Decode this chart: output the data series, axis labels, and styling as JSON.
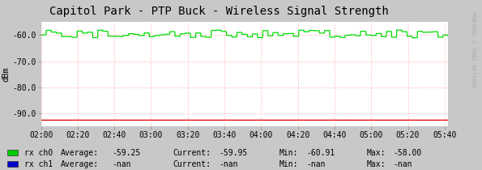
{
  "title": "Capitol Park - PTP Buck - Wireless Signal Strength",
  "ylabel": "dBm",
  "bg_color": "#c8c8c8",
  "plot_bg_color": "#ffffff",
  "grid_color": "#ffaaaa",
  "ylim": [
    -95,
    -55
  ],
  "yticks": [
    -90.0,
    -80.0,
    -70.0,
    -60.0
  ],
  "x_start": 7200,
  "x_end": 20520,
  "xtick_labels": [
    "02:00",
    "02:20",
    "02:40",
    "03:00",
    "03:20",
    "03:40",
    "04:00",
    "04:20",
    "04:40",
    "05:00",
    "05:20",
    "05:40"
  ],
  "xtick_values": [
    7200,
    8400,
    9600,
    10800,
    12000,
    13200,
    14400,
    15600,
    16800,
    18000,
    19200,
    20400
  ],
  "green_line_color": "#00dd00",
  "red_line_color": "#dd0000",
  "red_flat_y": -92.5,
  "signal_base": -59.5,
  "watermark": "RRDTOOL / TOBI OETIKER",
  "legend": [
    {
      "label": "rx ch0",
      "color": "#00cc00",
      "avg": "-59.25",
      "cur": "-59.95",
      "min": "-60.91",
      "max": "-58.00"
    },
    {
      "label": "rx ch1",
      "color": "#0000cc",
      "avg": "-nan",
      "cur": "-nan",
      "min": "-nan",
      "max": "-nan"
    }
  ]
}
